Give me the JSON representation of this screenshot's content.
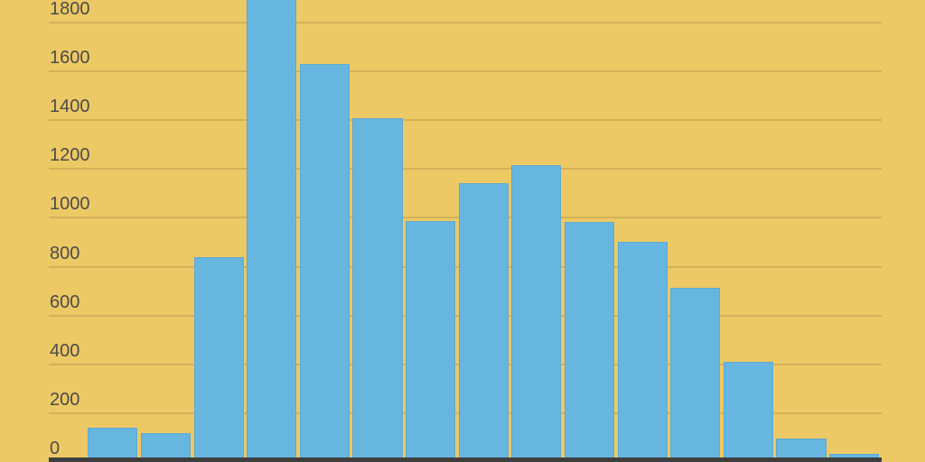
{
  "chart_data": {
    "type": "bar",
    "subtype": "histogram",
    "title": "",
    "xlabel": "",
    "ylabel": "",
    "legend": false,
    "grid": true,
    "legend_position": "none",
    "y_ticks": [
      0,
      200,
      400,
      600,
      800,
      1000,
      1200,
      1400,
      1600,
      1800
    ],
    "y_tick_labels": [
      "0",
      "200",
      "400",
      "600",
      "800",
      "1000",
      "1200",
      "1400",
      "1600",
      "1800"
    ],
    "x_tick_labels_visible": false,
    "ylim_visible": [
      0,
      1893
    ],
    "values": [
      140,
      118,
      840,
      2000,
      1630,
      1410,
      988,
      1141,
      1215,
      984,
      903,
      714,
      411,
      97,
      34
    ],
    "clipped_bars": [
      {
        "index": 3,
        "visible_min_value": 1893,
        "note": "This bar extends past the top edge of the screenshot; its true value is not visible (>=1893, rendered as estimate 2000)."
      }
    ],
    "colors": {
      "background": "#edc965",
      "bar": "#66b6e0",
      "gridline": "#d2b157",
      "tick_label": "#4b4b4b",
      "axis_line": "#3e3e3e"
    }
  }
}
